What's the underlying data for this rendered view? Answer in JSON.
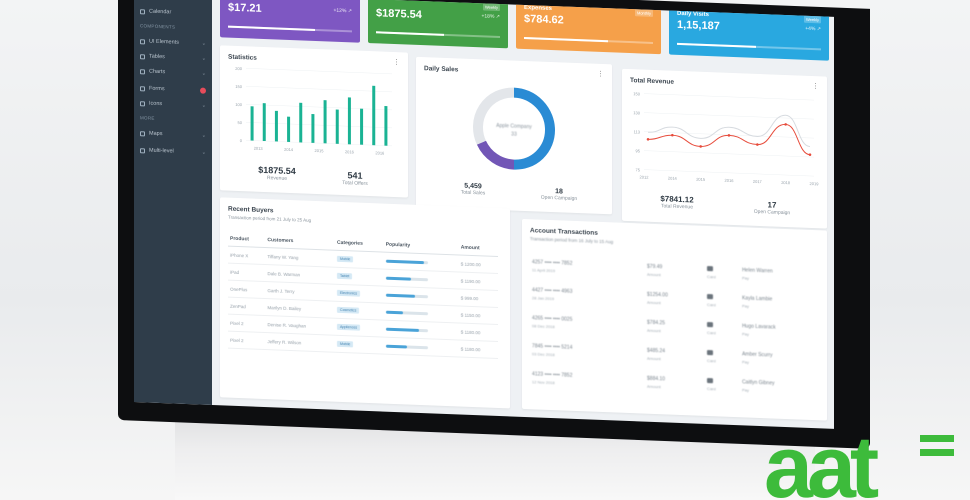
{
  "sidebar": {
    "items": [
      {
        "label": "Calendar",
        "chevron": "",
        "badge": false
      },
      {
        "label": "UI Elements",
        "chevron": "⌄",
        "badge": false
      },
      {
        "label": "Tables",
        "chevron": "⌄",
        "badge": false
      },
      {
        "label": "Charts",
        "chevron": "⌄",
        "badge": false
      },
      {
        "label": "Forms",
        "chevron": "",
        "badge": true
      },
      {
        "label": "Icons",
        "chevron": "⌄",
        "badge": false
      },
      {
        "label": "Maps",
        "chevron": "⌄",
        "badge": false
      },
      {
        "label": "Multi-level",
        "chevron": "⌄",
        "badge": false
      }
    ],
    "heading_components": "COMPONENTS",
    "heading_more": "MORE"
  },
  "kpis": [
    {
      "label": "",
      "value": "$17.21",
      "change": "+12% ↗",
      "tag": "",
      "color": "#7e57c2",
      "progress": 0.7
    },
    {
      "label": "",
      "value": "$1875.54",
      "change": "+18% ↗",
      "tag": "Weekly",
      "color": "#43a047",
      "progress": 0.55
    },
    {
      "label": "Expenses",
      "value": "$784.62",
      "change": "",
      "tag": "Monthly",
      "color": "#f5a04a",
      "progress": 0.65
    },
    {
      "label": "Daily Visits",
      "value": "1,15,187",
      "change": "+4% ↗",
      "tag": "Weekly",
      "color": "#29a8e0",
      "progress": 0.55
    }
  ],
  "statistics": {
    "title": "Statistics",
    "metric1_value": "$1875.54",
    "metric1_label": "Revenue",
    "metric2_value": "541",
    "metric2_label": "Total Offers",
    "chart_data": {
      "type": "bar",
      "values": [
        95,
        105,
        85,
        70,
        110,
        80,
        120,
        95,
        130,
        100,
        165,
        110
      ],
      "x_ticks": [
        "2013",
        "2014",
        "2015",
        "2016",
        "2016"
      ],
      "ylim": [
        0,
        200
      ],
      "y_ticks": [
        "200",
        "150",
        "100",
        "50",
        "0"
      ],
      "color": "#1ab394"
    }
  },
  "daily_sales": {
    "title": "Daily Sales",
    "center_label": "Apple Company",
    "center_value": "33",
    "metric1_value": "5,459",
    "metric1_label": "Total Sales",
    "metric2_value": "18",
    "metric2_label": "Open Campaign",
    "chart_data": {
      "type": "pie",
      "slices": [
        {
          "value": 50,
          "color": "#2a8bd4"
        },
        {
          "value": 18,
          "color": "#7256b6"
        },
        {
          "value": 32,
          "color": "#e3e6ea"
        }
      ]
    }
  },
  "total_revenue": {
    "title": "Total Revenue",
    "metric1_value": "$7841.12",
    "metric1_label": "Total Revenue",
    "metric2_value": "17",
    "metric2_label": "Open Campaign",
    "chart_data": {
      "type": "line",
      "x": [
        "2012",
        "2014",
        "2015",
        "2016",
        "2017",
        "2018",
        "2019"
      ],
      "y_ticks": [
        "150",
        "130",
        "113",
        "95",
        "75"
      ],
      "ylim": [
        75,
        150
      ],
      "series": [
        {
          "values": [
            105,
            110,
            100,
            112,
            104,
            125,
            96
          ],
          "color": "#e74c3c"
        },
        {
          "values": [
            112,
            118,
            108,
            120,
            112,
            134,
            104
          ],
          "color": "#d7dbe0"
        }
      ]
    }
  },
  "recent_buyers": {
    "title": "Recent Buyers",
    "subtitle": "Transaction period from 21 July to 25 Aug",
    "columns": [
      "Product",
      "Customers",
      "Categories",
      "Popularity",
      "Amount"
    ],
    "rows": [
      {
        "product": "iPhone X",
        "customer": "Tiffany W. Yang",
        "category": "Mobile",
        "popularity": 0.9,
        "amount": "$ 1200.00"
      },
      {
        "product": "iPad",
        "customer": "Dale B. Warman",
        "category": "Tablet",
        "popularity": 0.6,
        "amount": "$ 1190.00"
      },
      {
        "product": "OnePlus",
        "customer": "Garth J. Terry",
        "category": "Electronics",
        "popularity": 0.7,
        "amount": "$ 999.00"
      },
      {
        "product": "ZenPad",
        "customer": "Marilyn D. Bailey",
        "category": "Cosmetics",
        "popularity": 0.4,
        "amount": "$ 1150.00"
      },
      {
        "product": "Pixel 2",
        "customer": "Denise R. Vaughan",
        "category": "Appliences",
        "popularity": 0.8,
        "amount": "$ 1180.00"
      },
      {
        "product": "Pixel 2",
        "customer": "Jeffery R. Wilson",
        "category": "Mobile",
        "popularity": 0.5,
        "amount": "$ 1180.00"
      }
    ]
  },
  "account_transactions": {
    "title": "Account Transactions",
    "subtitle": "Transaction period from 16 July to 15 Aug",
    "rows": [
      {
        "card": "4257 •••• •••• 7852",
        "date": "11 April 2019",
        "amount": "$79.49",
        "amount_label": "Amount",
        "type": "Card",
        "name": "Helen Warren",
        "name_label": "Pay"
      },
      {
        "card": "4427 •••• •••• 4963",
        "date": "28 Jan 2019",
        "amount": "$1254.00",
        "amount_label": "Amount",
        "type": "Card",
        "name": "Kayla Lambie",
        "name_label": "Pay"
      },
      {
        "card": "4265 •••• •••• 0025",
        "date": "08 Dec 2018",
        "amount": "$784.25",
        "amount_label": "Amount",
        "type": "Card",
        "name": "Hugo Lavarack",
        "name_label": "Pay"
      },
      {
        "card": "7845 •••• •••• 5214",
        "date": "03 Dec 2018",
        "amount": "$485.24",
        "amount_label": "Amount",
        "type": "Card",
        "name": "Amber Scurry",
        "name_label": "Pay"
      },
      {
        "card": "4123 •••• •••• 7852",
        "date": "12 Nov 2018",
        "amount": "$884.10",
        "amount_label": "Amount",
        "type": "Card",
        "name": "Caitlyn Gibney",
        "name_label": "Pay"
      }
    ]
  },
  "brand": {
    "logo_text": "aat",
    "color": "#3dbb3b"
  }
}
